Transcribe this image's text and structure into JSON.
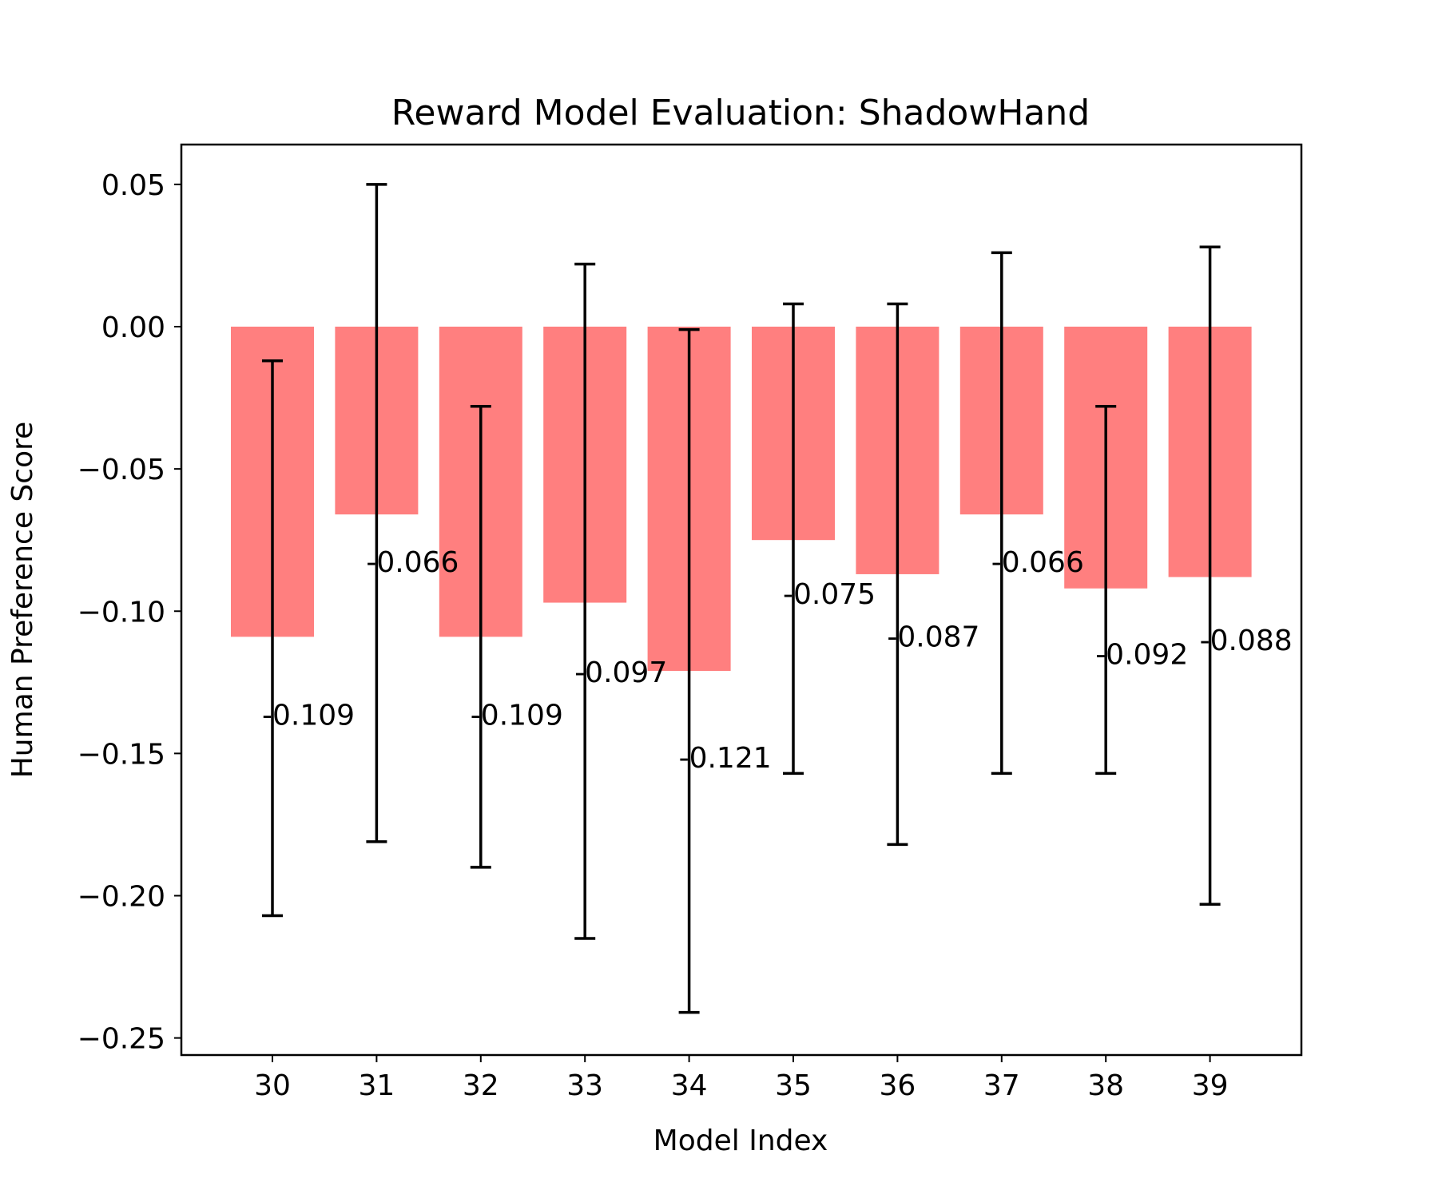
{
  "chart_data": {
    "type": "bar",
    "title": "Reward Model Evaluation: ShadowHand",
    "xlabel": "Model Index",
    "ylabel": "Human Preference Score",
    "categories": [
      "30",
      "31",
      "32",
      "33",
      "34",
      "35",
      "36",
      "37",
      "38",
      "39"
    ],
    "values": [
      -0.109,
      -0.066,
      -0.109,
      -0.097,
      -0.121,
      -0.075,
      -0.087,
      -0.066,
      -0.092,
      -0.088
    ],
    "value_labels": [
      "-0.109",
      "-0.066",
      "-0.109",
      "-0.097",
      "-0.121",
      "-0.075",
      "-0.087",
      "-0.066",
      "-0.092",
      "-0.088"
    ],
    "error_low": [
      -0.207,
      -0.181,
      -0.19,
      -0.215,
      -0.241,
      -0.157,
      -0.182,
      -0.157,
      -0.157,
      -0.203
    ],
    "error_high": [
      -0.012,
      0.05,
      -0.028,
      0.022,
      -0.001,
      0.008,
      0.008,
      0.026,
      -0.028,
      0.028
    ],
    "ylim": [
      -0.256,
      0.064
    ],
    "yticks": [
      0.05,
      0.0,
      -0.05,
      -0.1,
      -0.15,
      -0.2,
      -0.25
    ],
    "ytick_labels": [
      "0.05",
      "0.00",
      "−0.05",
      "−0.10",
      "−0.15",
      "−0.20",
      "−0.25"
    ],
    "bar_color": "#ff7f7f",
    "error_color": "#000000",
    "grid": false,
    "legend": "none"
  }
}
